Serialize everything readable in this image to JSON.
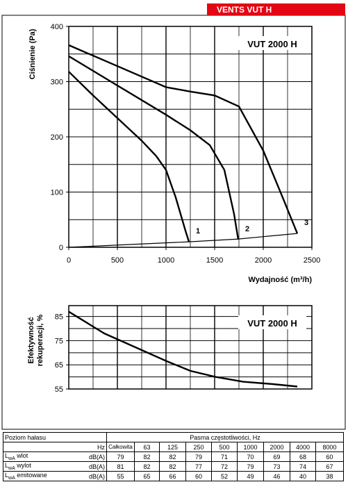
{
  "header": {
    "brand": "VENTS VUT H"
  },
  "chart_data": [
    {
      "type": "line",
      "title": "VUT 2000 H",
      "y_label": "Ciśnienie (Pa)",
      "x_label": "Wydajność (m³/h)",
      "xlim": [
        0,
        2500
      ],
      "ylim": [
        0,
        400
      ],
      "xticks": [
        0,
        500,
        1000,
        1500,
        2000,
        2500
      ],
      "yticks": [
        0,
        100,
        200,
        300,
        400
      ],
      "xgrid": [
        250,
        500,
        750,
        1000,
        1250,
        1500,
        1750,
        2000,
        2250
      ],
      "ygrid": [
        50,
        100,
        150,
        200,
        250,
        300,
        350
      ],
      "series": [
        {
          "name": "1",
          "color": "#000000",
          "x": [
            0,
            250,
            500,
            750,
            900,
            1000,
            1100,
            1200,
            1236
          ],
          "values": [
            318,
            275,
            234,
            193,
            165,
            140,
            90,
            30,
            10
          ]
        },
        {
          "name": "2",
          "color": "#000000",
          "x": [
            0,
            500,
            1000,
            1250,
            1450,
            1600,
            1700,
            1743
          ],
          "values": [
            346,
            293,
            240,
            212,
            185,
            140,
            60,
            14
          ]
        },
        {
          "name": "3",
          "color": "#000000",
          "x": [
            0,
            500,
            1000,
            1250,
            1500,
            1750,
            2000,
            2200,
            2350
          ],
          "values": [
            366,
            328,
            290,
            282,
            275,
            255,
            175,
            90,
            25
          ]
        },
        {
          "color": "#000000",
          "x": [
            0,
            1236,
            1743,
            2350
          ],
          "values": [
            0,
            10,
            15,
            25
          ]
        }
      ]
    },
    {
      "type": "line",
      "title": "VUT 2000 H",
      "y_label": [
        "Efektywność",
        "rekuperacji, %"
      ],
      "xlim": [
        0,
        2500
      ],
      "ylim": [
        55,
        89.5
      ],
      "yticks": [
        55,
        65,
        75,
        85
      ],
      "xgrid": [
        250,
        500,
        750,
        1000,
        1250,
        1500,
        1750,
        2000,
        2250
      ],
      "ygrid": [
        60,
        65,
        70,
        75,
        80,
        85
      ],
      "series": [
        {
          "color": "#000000",
          "x": [
            0,
            365,
            700,
            1007,
            1250,
            1507,
            1793,
            2100,
            2350
          ],
          "values": [
            87,
            78,
            72,
            66.5,
            62.5,
            60,
            58,
            57,
            56
          ]
        }
      ]
    }
  ],
  "table": {
    "title": "Poziom hałasu",
    "band_title": "Pasma częstotliwości, Hz",
    "unit_head": "Hz",
    "columns": [
      "Całkowita",
      63,
      125,
      250,
      500,
      1000,
      2000,
      4000,
      8000
    ],
    "rows": [
      {
        "symbol": "L",
        "sub": "wA",
        "label": "wlot",
        "unit": "dB(A)",
        "values": [
          79,
          82,
          82,
          79,
          71,
          70,
          69,
          68,
          60
        ]
      },
      {
        "symbol": "L",
        "sub": "wA",
        "label": "wylot",
        "unit": "dB(A)",
        "values": [
          81,
          82,
          82,
          77,
          72,
          79,
          73,
          74,
          67
        ]
      },
      {
        "symbol": "L",
        "sub": "wA",
        "label": "emitowane",
        "unit": "dB(A)",
        "values": [
          55,
          65,
          66,
          60,
          52,
          49,
          46,
          40,
          38
        ]
      }
    ]
  }
}
